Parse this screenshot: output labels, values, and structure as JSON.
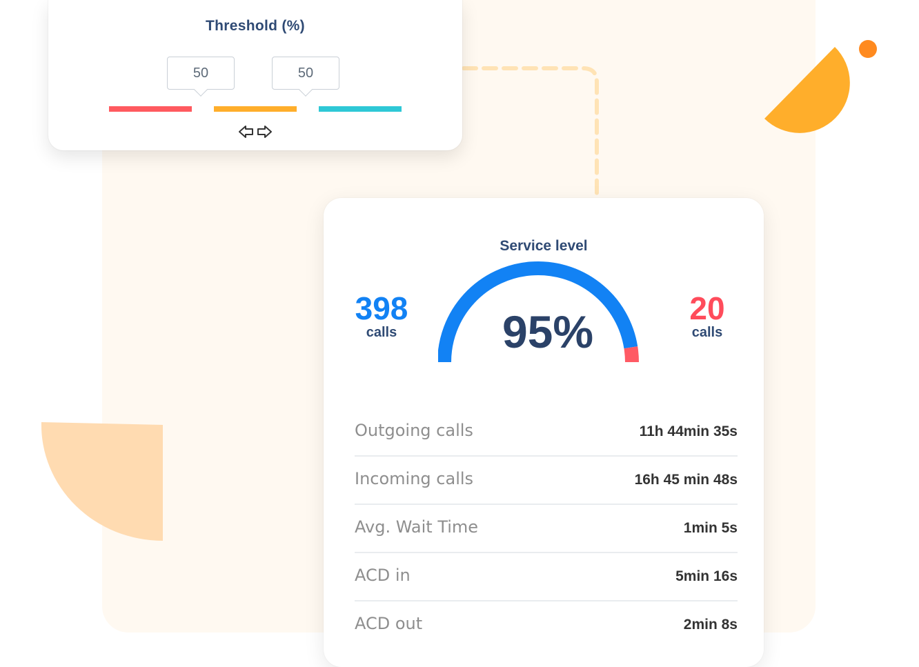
{
  "threshold": {
    "title": "Threshold (%)",
    "markers": [
      {
        "value": "50"
      },
      {
        "value": "50"
      }
    ],
    "segment_colors": [
      "#ff5a5f",
      "#ffae2b",
      "#2ec8d6"
    ],
    "control_icon": "left-right-arrows-icon"
  },
  "service_level": {
    "title": "Service level",
    "percentage": "95%",
    "gauge_fraction": 0.95,
    "gauge_colors": {
      "primary": "#1282f4",
      "remainder": "#ff5a64"
    },
    "left_stat": {
      "value": "398",
      "unit": "calls",
      "color": "#1282f4"
    },
    "right_stat": {
      "value": "20",
      "unit": "calls",
      "color": "#ff4c5b"
    }
  },
  "metrics": [
    {
      "label": "Outgoing calls",
      "value": "11h 44min 35s"
    },
    {
      "label": "Incoming calls",
      "value": "16h 45 min 48s"
    },
    {
      "label": "Avg. Wait Time",
      "value": "1min 5s"
    },
    {
      "label": "ACD in",
      "value": "5min 16s"
    },
    {
      "label": "ACD out",
      "value": "2min 8s"
    }
  ],
  "decorations": {
    "orange_half_circle": "#ffae2b",
    "orange_dot": "#ff8a1f",
    "peach_quarter": "#ffd9ad",
    "connector": "#ffe3b5"
  }
}
